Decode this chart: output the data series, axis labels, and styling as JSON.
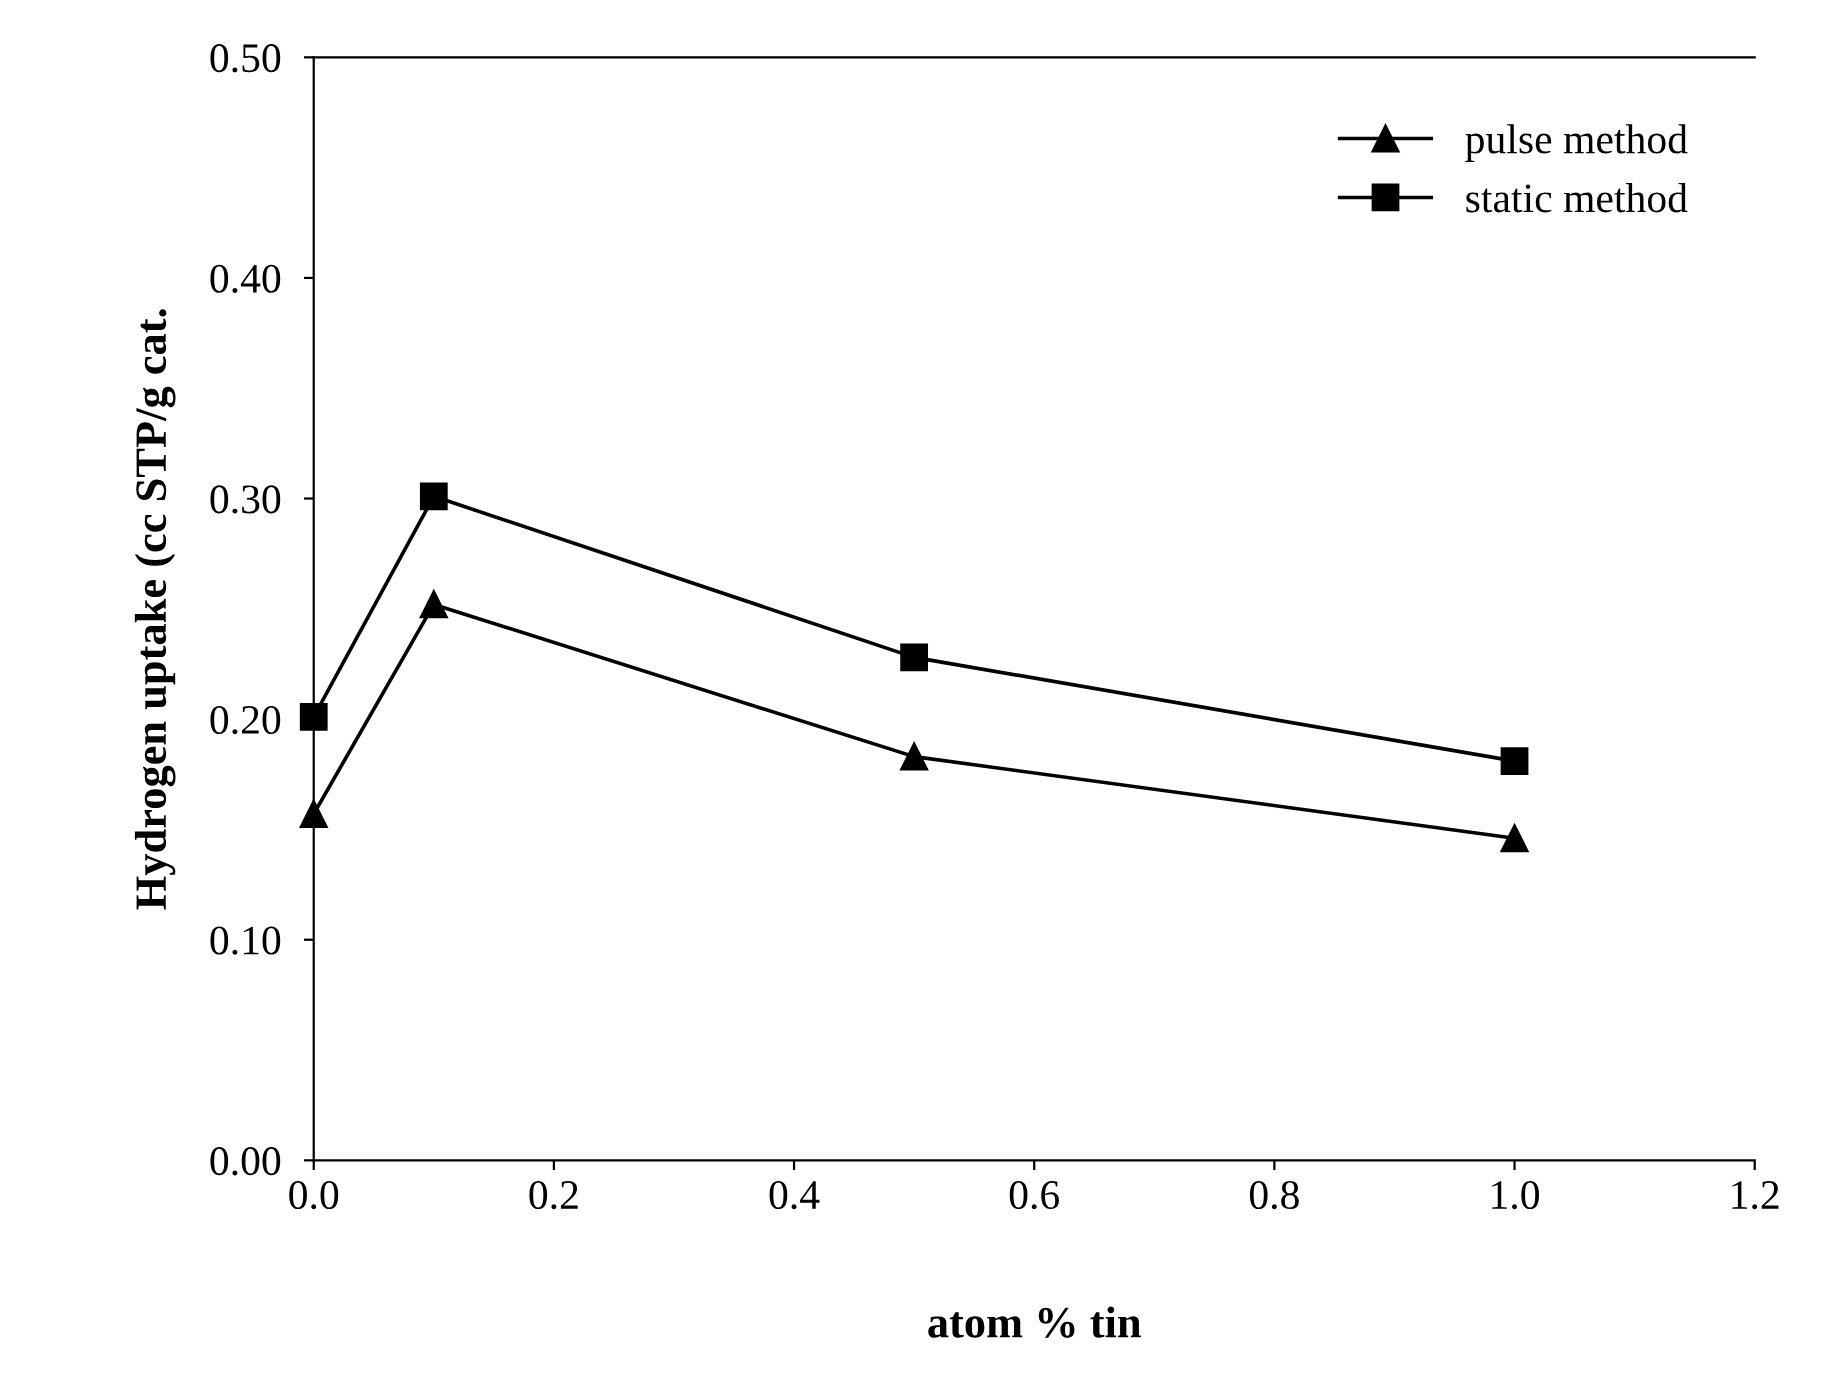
{
  "chart_data": {
    "type": "line",
    "xlabel": "atom % tin",
    "ylabel": "Hydrogen uptake (cc STP/g cat.",
    "x": [
      0.0,
      0.1,
      0.5,
      1.0
    ],
    "series": [
      {
        "name": "pulse method",
        "color": "#000000",
        "marker": "triangle",
        "values": [
          0.157,
          0.252,
          0.183,
          0.146
        ]
      },
      {
        "name": "static method",
        "color": "#000000",
        "marker": "square",
        "values": [
          0.201,
          0.301,
          0.228,
          0.181
        ]
      }
    ],
    "xlim": [
      0,
      1.2
    ],
    "xticks": [
      {
        "value": 0,
        "label": "0.0"
      },
      0.2,
      0.4,
      0.6,
      0.8,
      {
        "value": 1,
        "label": "1.0"
      },
      {
        "value": 1.2,
        "label": "1.2"
      }
    ],
    "ylim": [
      0,
      0.5
    ],
    "yticks": [
      {
        "value": 0,
        "label": "0.00"
      },
      {
        "value": 0.1,
        "label": "0.10"
      },
      {
        "value": 0.2,
        "label": "0.20"
      },
      {
        "value": 0.3,
        "label": "0.30"
      },
      {
        "value": 0.4,
        "label": "0.40"
      },
      {
        "value": 0.5,
        "label": "0.50"
      }
    ],
    "grid": false,
    "legend": "top right",
    "line_style": "solid"
  }
}
